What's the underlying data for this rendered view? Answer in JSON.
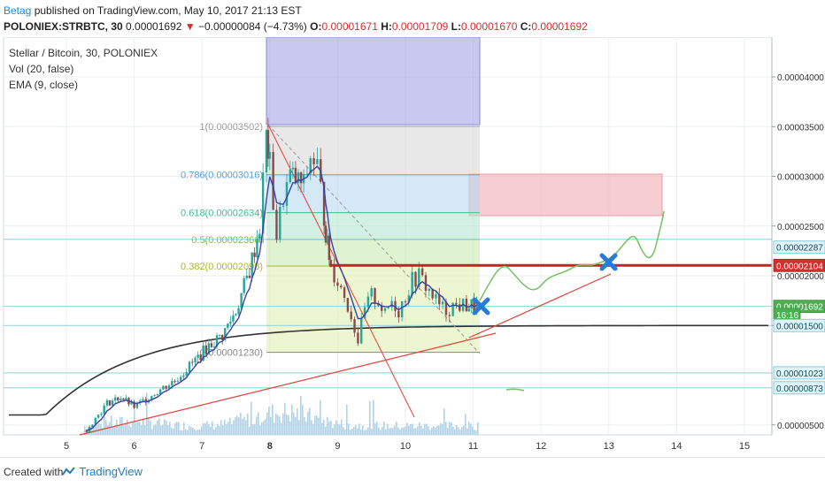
{
  "header": {
    "author": "Betag",
    "published_text": "published on TradingView.com, May 10, 2017 21:13 EST",
    "symbol": "POLONIEX:STRBTC, 30",
    "last": "0.00001692",
    "arrow": "▼",
    "change": "−0.00000084 (−4.73%)",
    "o_label": "O:",
    "o_value": "0.00001671",
    "h_label": "H:",
    "h_value": "0.00001709",
    "l_label": "L:",
    "l_value": "0.00001670",
    "c_label": "C:",
    "c_value": "0.00001692"
  },
  "legend": {
    "title": "Stellar / Bitcoin, 30, POLONIEX",
    "vol": "Vol (20, false)",
    "ema": "EMA (9, close)"
  },
  "footer": {
    "created": "Created with",
    "brand": "TradingView"
  },
  "colors": {
    "candle_up": "#26a69a",
    "candle_down": "#8b4a4a",
    "ema": "#3b3fa8",
    "volume": "#a8d4ef",
    "long_ma": "#333333",
    "trendline": "#e0413a",
    "resistance": "#cc2020",
    "projection": "#7cc36b",
    "cross": "#2b7bd4"
  },
  "chart_data": {
    "type": "candlestick",
    "x_ticks": [
      "5",
      "6",
      "7",
      "8",
      "9",
      "10",
      "11",
      "12",
      "13",
      "14",
      "15"
    ],
    "y_ticks": [
      "0.00004000",
      "0.00003500",
      "0.00003000",
      "0.00002500",
      "0.00002000",
      "0.00001500",
      "0.00000500"
    ],
    "ylim": [
      4e-06,
      4.4e-05
    ],
    "fib_levels": [
      {
        "label": "1(0.00003502)",
        "ratio": 1,
        "value": 3.502e-05,
        "color": "#9e9e9e"
      },
      {
        "label": "0.786(0.00003016)",
        "ratio": 0.786,
        "value": 3.016e-05,
        "color": "#5aa0d8"
      },
      {
        "label": "0.618(0.00002634)",
        "ratio": 0.618,
        "value": 2.634e-05,
        "color": "#3fbf8f"
      },
      {
        "label": "0.5(0.00002366)",
        "ratio": 0.5,
        "value": 2.366e-05,
        "color": "#7fbf3f"
      },
      {
        "label": "0.382(0.00002098)",
        "ratio": 0.382,
        "value": 2.098e-05,
        "color": "#a8b830"
      },
      {
        "label": "0(0.00001230)",
        "ratio": 0,
        "value": 1.23e-05,
        "color": "#888888"
      }
    ],
    "price_tags": [
      {
        "text": "0.00002287",
        "value": 2.287e-05,
        "style": "teal"
      },
      {
        "text": "0.00002104",
        "value": 2.104e-05,
        "style": "red"
      },
      {
        "text": "0.00001692",
        "value": 1.692e-05,
        "style": "green"
      },
      {
        "text": "16:16",
        "value": 1.61e-05,
        "style": "countdown"
      },
      {
        "text": "0.00001500",
        "value": 1.5e-05,
        "style": "teal"
      },
      {
        "text": "0.00001023",
        "value": 1.023e-05,
        "style": "teal"
      },
      {
        "text": "0.00000873",
        "value": 8.73e-06,
        "style": "teal"
      }
    ],
    "resistance_level": 2.104e-05,
    "series": [
      {
        "name": "STRBTC",
        "x": [
          5.3,
          5.6,
          5.8,
          6.0,
          6.3,
          6.6,
          6.9,
          7.1,
          7.3,
          7.5,
          7.7,
          7.85,
          7.95,
          8.0,
          8.1,
          8.2,
          8.3,
          8.5,
          8.6,
          8.7,
          8.8,
          8.85,
          8.9,
          9.0,
          9.1,
          9.2,
          9.3,
          9.4,
          9.5,
          9.6,
          9.7,
          9.8,
          9.9,
          10.0,
          10.1,
          10.2,
          10.3,
          10.4,
          10.5,
          10.6,
          10.7,
          10.8,
          10.9,
          11.05
        ],
        "values": [
          4.5e-06,
          7.2e-06,
          7.8e-06,
          6.8e-06,
          8.2e-06,
          9.5e-06,
          1.15e-05,
          1.3e-05,
          1.4e-05,
          1.65e-05,
          2.05e-05,
          2.5e-05,
          3.4e-05,
          3.1e-05,
          2.4e-05,
          2.8e-05,
          3e-05,
          2.9e-05,
          3.2e-05,
          3.1e-05,
          2.6e-05,
          2.3e-05,
          2.1e-05,
          1.95e-05,
          1.8e-05,
          1.6e-05,
          1.35e-05,
          1.65e-05,
          1.8e-05,
          1.75e-05,
          1.6e-05,
          1.75e-05,
          1.65e-05,
          1.8e-05,
          1.95e-05,
          2e-05,
          1.9e-05,
          1.8e-05,
          1.7e-05,
          1.65e-05,
          1.7e-05,
          1.7e-05,
          1.7e-05,
          1.692e-05
        ]
      }
    ]
  }
}
